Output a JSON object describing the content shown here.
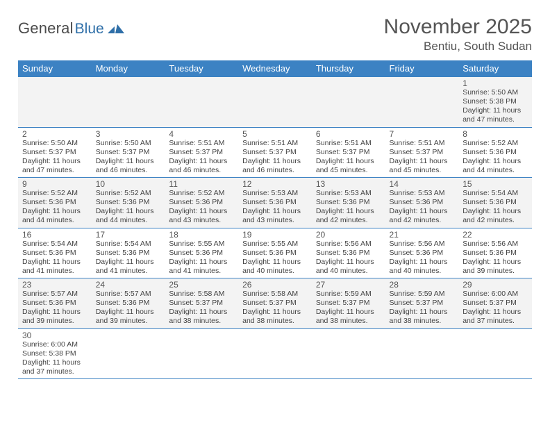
{
  "logo": {
    "general": "General",
    "blue": "Blue"
  },
  "title": {
    "month": "November 2025",
    "location": "Bentiu, South Sudan"
  },
  "colors": {
    "header_bg": "#3c82c3",
    "header_text": "#ffffff",
    "row_alt_a": "#f3f3f3",
    "row_alt_b": "#ffffff",
    "cell_border": "#3c82c3",
    "text": "#444444",
    "logo_gray": "#4b4b4b",
    "logo_blue": "#2f6fa8"
  },
  "day_headers": [
    "Sunday",
    "Monday",
    "Tuesday",
    "Wednesday",
    "Thursday",
    "Friday",
    "Saturday"
  ],
  "weeks": [
    [
      null,
      null,
      null,
      null,
      null,
      null,
      {
        "n": "1",
        "sr": "Sunrise: 5:50 AM",
        "ss": "Sunset: 5:38 PM",
        "d1": "Daylight: 11 hours",
        "d2": "and 47 minutes."
      }
    ],
    [
      {
        "n": "2",
        "sr": "Sunrise: 5:50 AM",
        "ss": "Sunset: 5:37 PM",
        "d1": "Daylight: 11 hours",
        "d2": "and 47 minutes."
      },
      {
        "n": "3",
        "sr": "Sunrise: 5:50 AM",
        "ss": "Sunset: 5:37 PM",
        "d1": "Daylight: 11 hours",
        "d2": "and 46 minutes."
      },
      {
        "n": "4",
        "sr": "Sunrise: 5:51 AM",
        "ss": "Sunset: 5:37 PM",
        "d1": "Daylight: 11 hours",
        "d2": "and 46 minutes."
      },
      {
        "n": "5",
        "sr": "Sunrise: 5:51 AM",
        "ss": "Sunset: 5:37 PM",
        "d1": "Daylight: 11 hours",
        "d2": "and 46 minutes."
      },
      {
        "n": "6",
        "sr": "Sunrise: 5:51 AM",
        "ss": "Sunset: 5:37 PM",
        "d1": "Daylight: 11 hours",
        "d2": "and 45 minutes."
      },
      {
        "n": "7",
        "sr": "Sunrise: 5:51 AM",
        "ss": "Sunset: 5:37 PM",
        "d1": "Daylight: 11 hours",
        "d2": "and 45 minutes."
      },
      {
        "n": "8",
        "sr": "Sunrise: 5:52 AM",
        "ss": "Sunset: 5:36 PM",
        "d1": "Daylight: 11 hours",
        "d2": "and 44 minutes."
      }
    ],
    [
      {
        "n": "9",
        "sr": "Sunrise: 5:52 AM",
        "ss": "Sunset: 5:36 PM",
        "d1": "Daylight: 11 hours",
        "d2": "and 44 minutes."
      },
      {
        "n": "10",
        "sr": "Sunrise: 5:52 AM",
        "ss": "Sunset: 5:36 PM",
        "d1": "Daylight: 11 hours",
        "d2": "and 44 minutes."
      },
      {
        "n": "11",
        "sr": "Sunrise: 5:52 AM",
        "ss": "Sunset: 5:36 PM",
        "d1": "Daylight: 11 hours",
        "d2": "and 43 minutes."
      },
      {
        "n": "12",
        "sr": "Sunrise: 5:53 AM",
        "ss": "Sunset: 5:36 PM",
        "d1": "Daylight: 11 hours",
        "d2": "and 43 minutes."
      },
      {
        "n": "13",
        "sr": "Sunrise: 5:53 AM",
        "ss": "Sunset: 5:36 PM",
        "d1": "Daylight: 11 hours",
        "d2": "and 42 minutes."
      },
      {
        "n": "14",
        "sr": "Sunrise: 5:53 AM",
        "ss": "Sunset: 5:36 PM",
        "d1": "Daylight: 11 hours",
        "d2": "and 42 minutes."
      },
      {
        "n": "15",
        "sr": "Sunrise: 5:54 AM",
        "ss": "Sunset: 5:36 PM",
        "d1": "Daylight: 11 hours",
        "d2": "and 42 minutes."
      }
    ],
    [
      {
        "n": "16",
        "sr": "Sunrise: 5:54 AM",
        "ss": "Sunset: 5:36 PM",
        "d1": "Daylight: 11 hours",
        "d2": "and 41 minutes."
      },
      {
        "n": "17",
        "sr": "Sunrise: 5:54 AM",
        "ss": "Sunset: 5:36 PM",
        "d1": "Daylight: 11 hours",
        "d2": "and 41 minutes."
      },
      {
        "n": "18",
        "sr": "Sunrise: 5:55 AM",
        "ss": "Sunset: 5:36 PM",
        "d1": "Daylight: 11 hours",
        "d2": "and 41 minutes."
      },
      {
        "n": "19",
        "sr": "Sunrise: 5:55 AM",
        "ss": "Sunset: 5:36 PM",
        "d1": "Daylight: 11 hours",
        "d2": "and 40 minutes."
      },
      {
        "n": "20",
        "sr": "Sunrise: 5:56 AM",
        "ss": "Sunset: 5:36 PM",
        "d1": "Daylight: 11 hours",
        "d2": "and 40 minutes."
      },
      {
        "n": "21",
        "sr": "Sunrise: 5:56 AM",
        "ss": "Sunset: 5:36 PM",
        "d1": "Daylight: 11 hours",
        "d2": "and 40 minutes."
      },
      {
        "n": "22",
        "sr": "Sunrise: 5:56 AM",
        "ss": "Sunset: 5:36 PM",
        "d1": "Daylight: 11 hours",
        "d2": "and 39 minutes."
      }
    ],
    [
      {
        "n": "23",
        "sr": "Sunrise: 5:57 AM",
        "ss": "Sunset: 5:36 PM",
        "d1": "Daylight: 11 hours",
        "d2": "and 39 minutes."
      },
      {
        "n": "24",
        "sr": "Sunrise: 5:57 AM",
        "ss": "Sunset: 5:36 PM",
        "d1": "Daylight: 11 hours",
        "d2": "and 39 minutes."
      },
      {
        "n": "25",
        "sr": "Sunrise: 5:58 AM",
        "ss": "Sunset: 5:37 PM",
        "d1": "Daylight: 11 hours",
        "d2": "and 38 minutes."
      },
      {
        "n": "26",
        "sr": "Sunrise: 5:58 AM",
        "ss": "Sunset: 5:37 PM",
        "d1": "Daylight: 11 hours",
        "d2": "and 38 minutes."
      },
      {
        "n": "27",
        "sr": "Sunrise: 5:59 AM",
        "ss": "Sunset: 5:37 PM",
        "d1": "Daylight: 11 hours",
        "d2": "and 38 minutes."
      },
      {
        "n": "28",
        "sr": "Sunrise: 5:59 AM",
        "ss": "Sunset: 5:37 PM",
        "d1": "Daylight: 11 hours",
        "d2": "and 38 minutes."
      },
      {
        "n": "29",
        "sr": "Sunrise: 6:00 AM",
        "ss": "Sunset: 5:37 PM",
        "d1": "Daylight: 11 hours",
        "d2": "and 37 minutes."
      }
    ],
    [
      {
        "n": "30",
        "sr": "Sunrise: 6:00 AM",
        "ss": "Sunset: 5:38 PM",
        "d1": "Daylight: 11 hours",
        "d2": "and 37 minutes."
      },
      null,
      null,
      null,
      null,
      null,
      null
    ]
  ]
}
